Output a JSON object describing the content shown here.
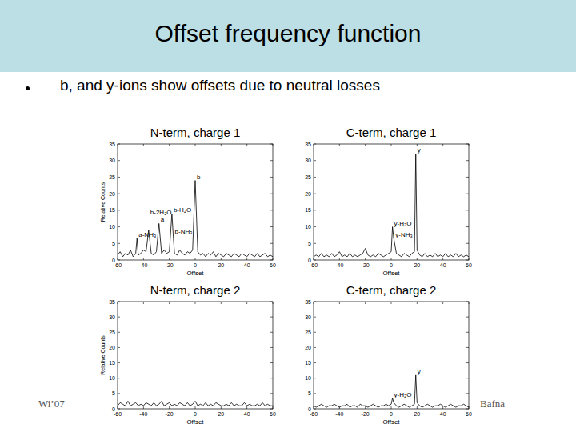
{
  "slide": {
    "title": "Offset frequency function",
    "bullet": "b, and y-ions show offsets due to neutral losses",
    "footer": "Wi’07",
    "author": "Bafna"
  },
  "chart_data": [
    {
      "type": "line",
      "title": "N-term, charge 1",
      "x_label": "Offset",
      "y_label": "Relative Counts",
      "color": "#000000",
      "grid": false,
      "xlim": [
        -60,
        60
      ],
      "xticks": [
        -60,
        -40,
        -20,
        0,
        20,
        40,
        60
      ],
      "ylim": [
        0,
        35
      ],
      "yticks": [
        0,
        5,
        10,
        15,
        20,
        25,
        30,
        35
      ],
      "x": [
        -60,
        -58,
        -56,
        -54,
        -52,
        -50,
        -48,
        -46,
        -45,
        -44,
        -42,
        -40,
        -38,
        -36,
        -34,
        -32,
        -30,
        -28,
        -26,
        -24,
        -22,
        -20,
        -18,
        -17,
        -16,
        -14,
        -12,
        -10,
        -8,
        -6,
        -4,
        -2,
        0,
        2,
        4,
        6,
        8,
        10,
        12,
        14,
        16,
        18,
        20,
        22,
        24,
        26,
        28,
        30,
        32,
        34,
        36,
        38,
        40,
        42,
        44,
        46,
        48,
        50,
        52,
        54,
        56,
        58,
        60
      ],
      "values": [
        1.5,
        2.5,
        1,
        2,
        1.5,
        3,
        1,
        2,
        6.5,
        1.5,
        2,
        3,
        2.5,
        9,
        2,
        1.5,
        2.5,
        11,
        2,
        3,
        2,
        2.5,
        14,
        7.5,
        2,
        1.5,
        3,
        2,
        1.5,
        2.5,
        2,
        3,
        24,
        2.5,
        1.5,
        2,
        1,
        2,
        1.5,
        2.5,
        1,
        2,
        1.5,
        1,
        2,
        1.5,
        1,
        2,
        1.5,
        1,
        2,
        1.5,
        1,
        2,
        1.5,
        1,
        2,
        1,
        1.5,
        2,
        1,
        1.5,
        1
      ],
      "annotations": [
        {
          "text": "b",
          "x": 0
        },
        {
          "text": "b-H₂O",
          "x": -18
        },
        {
          "text": "a",
          "x": -28
        },
        {
          "text": "b-NH₃",
          "x": -17
        },
        {
          "text": "b-2H₂O",
          "x": -36
        },
        {
          "text": "a-NH₃",
          "x": -45
        }
      ]
    },
    {
      "type": "line",
      "title": "C-term, charge 1",
      "x_label": "Offset",
      "color": "#000000",
      "grid": false,
      "xlim": [
        -60,
        60
      ],
      "xticks": [
        -60,
        -40,
        -20,
        0,
        20,
        40,
        60
      ],
      "ylim": [
        0,
        35
      ],
      "yticks": [
        0,
        5,
        10,
        15,
        20,
        25,
        30,
        35
      ],
      "x": [
        -60,
        -58,
        -56,
        -54,
        -52,
        -50,
        -48,
        -46,
        -44,
        -42,
        -40,
        -38,
        -36,
        -34,
        -32,
        -30,
        -28,
        -26,
        -24,
        -22,
        -20,
        -18,
        -16,
        -14,
        -12,
        -10,
        -8,
        -6,
        -4,
        -2,
        0,
        1,
        2,
        4,
        6,
        8,
        10,
        12,
        14,
        16,
        18,
        19,
        20,
        22,
        24,
        26,
        28,
        30,
        32,
        34,
        36,
        38,
        40,
        42,
        44,
        46,
        48,
        50,
        52,
        54,
        56,
        58,
        60
      ],
      "values": [
        1,
        1.5,
        1,
        2,
        1,
        1.5,
        1,
        2,
        1,
        1.5,
        2.5,
        1,
        1.5,
        1,
        2,
        1,
        1.5,
        1,
        1.5,
        2,
        3.5,
        1.5,
        1,
        1.5,
        1,
        2,
        1.5,
        1,
        1.5,
        2,
        2.5,
        10,
        6.5,
        2,
        1.5,
        1,
        2,
        1.5,
        1,
        2,
        2.5,
        32,
        3,
        1.5,
        1,
        2,
        1,
        1.5,
        1,
        2,
        1,
        1.5,
        1,
        2,
        1,
        1.5,
        1,
        2,
        1,
        1.5,
        1,
        1.5,
        1
      ],
      "annotations": [
        {
          "text": "y",
          "x": 19
        },
        {
          "text": "y-H₂O",
          "x": 1
        },
        {
          "text": "y-NH₃",
          "x": 2
        }
      ]
    },
    {
      "type": "line",
      "title": "N-term, charge 2",
      "x_label": "Offset",
      "y_label": "Relative Counts",
      "color": "#000000",
      "grid": false,
      "xlim": [
        -60,
        60
      ],
      "xticks": [
        -60,
        -40,
        -20,
        0,
        20,
        40,
        60
      ],
      "ylim": [
        0,
        35
      ],
      "yticks": [
        0,
        5,
        10,
        15,
        20,
        25,
        30,
        35
      ],
      "x": [
        -60,
        -58,
        -56,
        -54,
        -52,
        -50,
        -48,
        -46,
        -44,
        -42,
        -40,
        -38,
        -36,
        -34,
        -32,
        -30,
        -28,
        -26,
        -24,
        -22,
        -20,
        -18,
        -16,
        -14,
        -12,
        -10,
        -8,
        -6,
        -4,
        -2,
        0,
        2,
        4,
        6,
        8,
        10,
        12,
        14,
        16,
        18,
        20,
        22,
        24,
        26,
        28,
        30,
        32,
        34,
        36,
        38,
        40,
        42,
        44,
        46,
        48,
        50,
        52,
        54,
        56,
        58,
        60
      ],
      "values": [
        1,
        2,
        1.5,
        1,
        2.5,
        1,
        1.5,
        2,
        1,
        1.5,
        1,
        2,
        1.5,
        1,
        2,
        1,
        1.5,
        2.5,
        1,
        1.5,
        2,
        1,
        1.5,
        1,
        2,
        1.5,
        1,
        2,
        1,
        1.5,
        2.5,
        1,
        1.5,
        1,
        2,
        1,
        1.5,
        1,
        2,
        1.5,
        1,
        1,
        1.5,
        1,
        2,
        1,
        1.5,
        1,
        1,
        2,
        1,
        1.5,
        1,
        1,
        1.5,
        1,
        2,
        1,
        1.5,
        1,
        1
      ]
    },
    {
      "type": "line",
      "title": "C-term, charge 2",
      "x_label": "Offset",
      "color": "#000000",
      "grid": false,
      "xlim": [
        -60,
        60
      ],
      "xticks": [
        -60,
        -40,
        -20,
        0,
        20,
        40,
        60
      ],
      "ylim": [
        0,
        35
      ],
      "yticks": [
        0,
        5,
        10,
        15,
        20,
        25,
        30,
        35
      ],
      "x": [
        -60,
        -58,
        -56,
        -54,
        -52,
        -50,
        -48,
        -46,
        -44,
        -42,
        -40,
        -38,
        -36,
        -34,
        -32,
        -30,
        -28,
        -26,
        -24,
        -22,
        -20,
        -18,
        -16,
        -14,
        -12,
        -10,
        -8,
        -6,
        -4,
        -2,
        0,
        1,
        2,
        4,
        6,
        8,
        10,
        12,
        14,
        16,
        18,
        19,
        20,
        22,
        24,
        26,
        28,
        30,
        32,
        34,
        36,
        38,
        40,
        42,
        44,
        46,
        48,
        50,
        52,
        54,
        56,
        58,
        60
      ],
      "values": [
        1,
        0.5,
        1,
        1.5,
        1,
        0.5,
        1,
        1,
        1.5,
        1,
        0.5,
        1,
        1,
        1.5,
        0.5,
        1,
        1,
        0.5,
        1.5,
        1,
        1,
        0.5,
        1,
        1.5,
        1,
        0.5,
        1,
        1,
        1.5,
        1,
        1.5,
        3.5,
        2,
        1,
        0.5,
        1,
        1.5,
        1,
        0.5,
        1,
        1.5,
        11,
        2,
        1,
        0.5,
        1,
        1.5,
        1,
        0.5,
        1,
        1,
        1.5,
        1,
        0.5,
        1,
        1.5,
        1,
        0.5,
        1,
        1,
        1.5,
        1,
        0.5
      ],
      "annotations": [
        {
          "text": "y",
          "x": 19
        },
        {
          "text": "y-H₂O",
          "x": 1
        }
      ]
    }
  ]
}
